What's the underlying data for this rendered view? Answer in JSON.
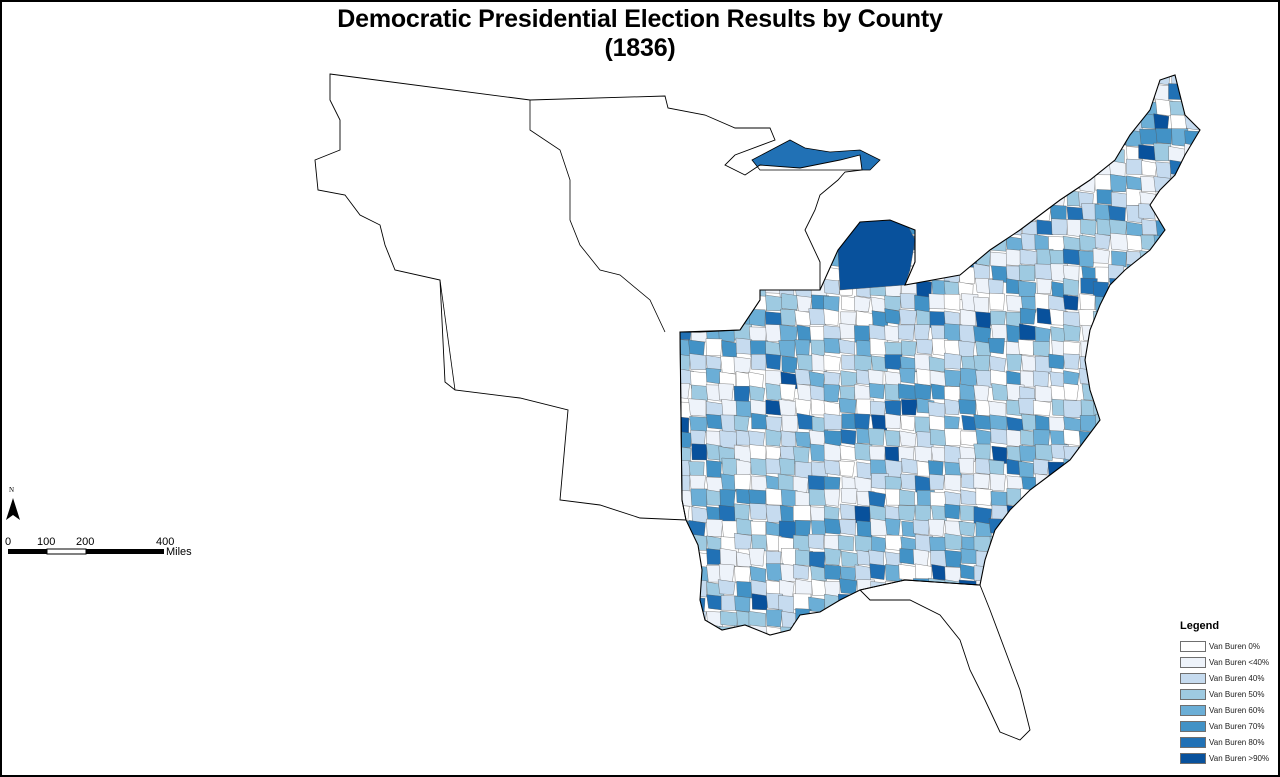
{
  "title": {
    "line1": "Democratic Presidential Election Results by County",
    "line2": "(1836)"
  },
  "north_arrow": {
    "label": "N"
  },
  "scale_bar": {
    "ticks": [
      "0",
      "100",
      "200",
      "400"
    ],
    "unit": "Miles"
  },
  "legend": {
    "title": "Legend",
    "items": [
      {
        "label": "Van Buren 0%",
        "color": "#ffffff"
      },
      {
        "label": "Van Buren <40%",
        "color": "#eef3fa"
      },
      {
        "label": "Van Buren 40%",
        "color": "#c6dbef"
      },
      {
        "label": "Van Buren 50%",
        "color": "#9ecae1"
      },
      {
        "label": "Van Buren 60%",
        "color": "#6baed6"
      },
      {
        "label": "Van Buren 70%",
        "color": "#4292c6"
      },
      {
        "label": "Van Buren 80%",
        "color": "#2171b5"
      },
      {
        "label": "Van Buren >90%",
        "color": "#08519c"
      }
    ]
  },
  "map": {
    "outline_color": "#000000",
    "county_border_color": "#555555"
  }
}
